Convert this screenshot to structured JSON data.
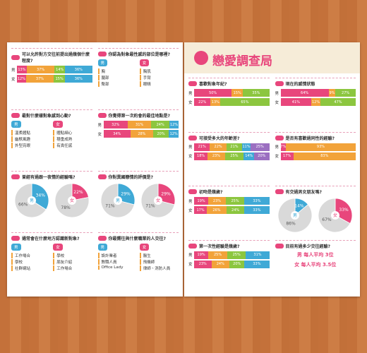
{
  "header": {
    "title": "戀愛調查局"
  },
  "palette": [
    "#e8467c",
    "#f2a33a",
    "#8cc63f",
    "#3fa9d6",
    "#9b6fc1",
    "#f5d33f"
  ],
  "pages": [
    {
      "columns": [
        [
          {
            "title": "可以允許對方交往前提出過幾個什麼程度?",
            "kind": "bars",
            "rows": [
              {
                "label": "男",
                "values": [
                  13,
                  37,
                  14,
                  36
                ],
                "value_labels": [
                  "13%",
                  "37%",
                  "14%",
                  "36%"
                ]
              },
              {
                "label": "女",
                "values": [
                  12,
                  37,
                  15,
                  36
                ],
                "value_labels": [
                  "12%",
                  "37%",
                  "15%",
                  "36%"
                ]
              }
            ]
          },
          {
            "title": "最對什麼樣對象感到心動?",
            "kind": "list",
            "groups": [
              {
                "label": "男",
                "items": [
                  "溫柔體貼",
                  "幽默風趣",
                  "外型亮眼"
                ]
              },
              {
                "label": "女",
                "items": [
                  "體貼細心",
                  "穩重成熟",
                  "有責任感"
                ]
              }
            ]
          },
          {
            "title": "曾經有過跟一夜情的經驗嗎?",
            "kind": "pie",
            "pies": [
              {
                "label": "男",
                "values": [
                  34,
                  66
                ],
                "value_labels": [
                  "34%",
                  "66%"
                ]
              },
              {
                "label": "女",
                "values": [
                  22,
                  78
                ],
                "value_labels": [
                  "22%",
                  "78%"
                ]
              }
            ]
          },
          {
            "title": "通常會在什麼地方認識新對象?",
            "kind": "list",
            "groups": [
              {
                "label": "男",
                "items": [
                  "工作場合",
                  "學校",
                  "社群網站"
                ]
              },
              {
                "label": "女",
                "items": [
                  "學校",
                  "朋友介紹",
                  "工作場合"
                ]
              }
            ]
          }
        ],
        [
          {
            "title": "你認為對象最性感的部位是哪裡?",
            "kind": "list",
            "groups": [
              {
                "label": "男",
                "items": [
                  "胸",
                  "腿部",
                  "臀部"
                ]
              },
              {
                "label": "女",
                "items": [
                  "胸肌",
                  "手臂",
                  "眼睛"
                ]
              }
            ]
          },
          {
            "title": "你覺得第一次約會的最佳地點是?",
            "kind": "bars",
            "rows": [
              {
                "label": "男",
                "values": [
                  32,
                  31,
                  24,
                  12
                ],
                "value_labels": [
                  "32%",
                  "31%",
                  "24%",
                  "12%"
                ]
              },
              {
                "label": "女",
                "values": [
                  34,
                  28,
                  20,
                  12
                ],
                "value_labels": [
                  "34%",
                  "28%",
                  "20%",
                  "12%"
                ]
              }
            ]
          },
          {
            "title": "你對異國戀情的評價是?",
            "kind": "pie",
            "pies": [
              {
                "label": "男",
                "values": [
                  29,
                  71
                ],
                "value_labels": [
                  "29%",
                  "71%"
                ]
              },
              {
                "label": "女",
                "values": [
                  29,
                  71
                ],
                "value_labels": [
                  "29%",
                  "71%"
                ]
              }
            ]
          },
          {
            "title": "你最嚮往與什麼職業的人交往?",
            "kind": "list",
            "groups": [
              {
                "label": "男",
                "items": [
                  "設計業者",
                  "教職人員",
                  "Office Lady"
                ]
              },
              {
                "label": "女",
                "items": [
                  "醫生",
                  "飛機師",
                  "律師、消防人員"
                ]
              }
            ]
          }
        ]
      ]
    },
    {
      "columns": [
        [
          {
            "title": "喜歡對象年紀?",
            "kind": "bars",
            "rows": [
              {
                "label": "男",
                "values": [
                  50,
                  15,
                  35
                ],
                "value_labels": [
                  "50%",
                  "15%",
                  "35%"
                ]
              },
              {
                "label": "女",
                "values": [
                  22,
                  13,
                  65
                ],
                "value_labels": [
                  "22%",
                  "13%",
                  "65%"
                ]
              }
            ]
          },
          {
            "title": "可接受多大的年齡差?",
            "kind": "bars",
            "rows": [
              {
                "label": "男",
                "values": [
                  21,
                  22,
                  21,
                  11,
                  25
                ],
                "value_labels": [
                  "21%",
                  "22%",
                  "21%",
                  "11%",
                  "25%"
                ]
              },
              {
                "label": "女",
                "values": [
                  18,
                  23,
                  25,
                  14,
                  20
                ],
                "value_labels": [
                  "18%",
                  "23%",
                  "25%",
                  "14%",
                  "20%"
                ]
              }
            ]
          },
          {
            "title": "初吻是幾歲?",
            "kind": "bars",
            "rows": [
              {
                "label": "男",
                "values": [
                  19,
                  23,
                  25,
                  33
                ],
                "value_labels": [
                  "19%",
                  "23%",
                  "25%",
                  "33%"
                ]
              },
              {
                "label": "女",
                "values": [
                  17,
                  26,
                  24,
                  33
                ],
                "value_labels": [
                  "17%",
                  "26%",
                  "24%",
                  "33%"
                ]
              }
            ]
          },
          {
            "title": "第一次性經驗是幾歲?",
            "kind": "bars",
            "rows": [
              {
                "label": "男",
                "values": [
                  19,
                  25,
                  25,
                  31
                ],
                "value_labels": [
                  "19%",
                  "25%",
                  "25%",
                  "31%"
                ]
              },
              {
                "label": "女",
                "values": [
                  23,
                  24,
                  20,
                  33
                ],
                "value_labels": [
                  "23%",
                  "24%",
                  "20%",
                  "33%"
                ]
              }
            ]
          }
        ],
        [
          {
            "title": "現在的感情狀態",
            "kind": "bars",
            "rows": [
              {
                "label": "男",
                "values": [
                  64,
                  9,
                  27
                ],
                "value_labels": [
                  "64%",
                  "9%",
                  "27%"
                ]
              },
              {
                "label": "女",
                "values": [
                  41,
                  12,
                  47
                ],
                "value_labels": [
                  "41%",
                  "12%",
                  "47%"
                ]
              }
            ]
          },
          {
            "title": "是否有喜歡過同性的經驗?",
            "kind": "bars",
            "rows": [
              {
                "label": "男",
                "values": [
                  7,
                  93
                ],
                "value_labels": [
                  "7%",
                  "93%"
                ]
              },
              {
                "label": "女",
                "values": [
                  17,
                  83
                ],
                "value_labels": [
                  "17%",
                  "83%"
                ]
              }
            ]
          },
          {
            "title": "有交過男女朋友嗎?",
            "kind": "pie",
            "pies": [
              {
                "label": "男",
                "values": [
                  14,
                  86
                ],
                "value_labels": [
                  "14%",
                  "86%"
                ]
              },
              {
                "label": "女",
                "values": [
                  33,
                  67
                ],
                "value_labels": [
                  "33%",
                  "67%"
                ]
              }
            ]
          },
          {
            "title": "目前有過多少交往經驗?",
            "kind": "stat",
            "items": [
              "男 每人平均 3位",
              "女 每人平均 3.5位"
            ]
          }
        ]
      ]
    }
  ]
}
